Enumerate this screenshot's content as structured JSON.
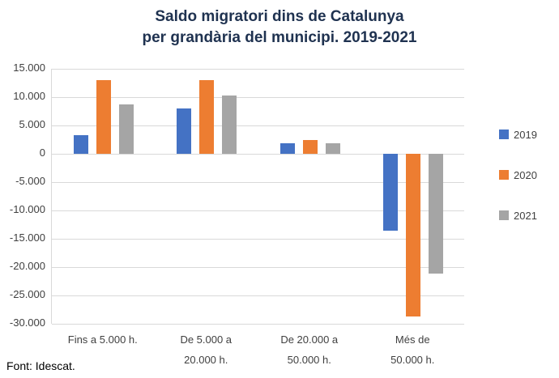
{
  "title": {
    "line1": "Saldo migratori dins de Catalunya",
    "line2": "per grandària del municipi. 2019-2021"
  },
  "footer": "Font: Idescat.",
  "colors": {
    "series_2019": "#4472C4",
    "series_2020": "#ED7D31",
    "series_2021": "#A5A5A5",
    "gridline": "#D9D9D9",
    "axis_text": "#404040",
    "title_text": "#1F3250"
  },
  "chart_data": {
    "type": "bar",
    "title": "Saldo migratori dins de Catalunya per grandària del municipi. 2019-2021",
    "categories": [
      "Fins a 5.000 h.",
      "De 5.000 a 20.000 h.",
      "De 20.000 a 50.000 h.",
      "Més de 50.000 h."
    ],
    "category_label_lines": [
      [
        "Fins a 5.000 h."
      ],
      [
        "De 5.000 a",
        "20.000 h."
      ],
      [
        "De 20.000 a",
        "50.000 h."
      ],
      [
        "Més de",
        "50.000 h."
      ]
    ],
    "series": [
      {
        "name": "2019",
        "color": "#4472C4",
        "values": [
          3300,
          8000,
          1800,
          -13500
        ]
      },
      {
        "name": "2020",
        "color": "#ED7D31",
        "values": [
          13000,
          13000,
          2500,
          -28700
        ]
      },
      {
        "name": "2021",
        "color": "#A5A5A5",
        "values": [
          8700,
          10300,
          1800,
          -21200
        ]
      }
    ],
    "ylim": [
      -30000,
      15000
    ],
    "y_tick_step": 5000,
    "y_tick_labels": [
      "15.000",
      "10.000",
      "5.000",
      "0",
      "-5.000",
      "-10.000",
      "-15.000",
      "-20.000",
      "-25.000",
      "-30.000"
    ],
    "xlabel": "",
    "ylabel": "",
    "grid": true,
    "legend_position": "right"
  }
}
